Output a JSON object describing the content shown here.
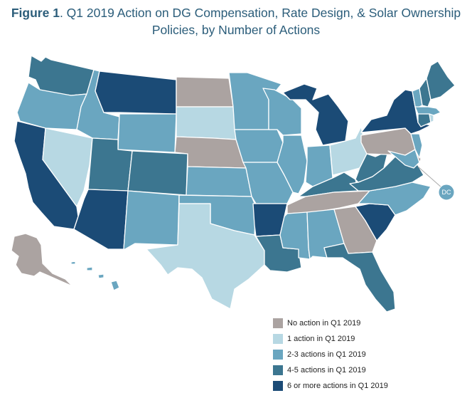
{
  "title": {
    "figure_label": "Figure 1",
    "text": ". Q1 2019 Action on DG Compensation, Rate Design, & Solar Ownership",
    "line2": "Policies, by Number of Actions"
  },
  "colors": {
    "none": "#aba3a1",
    "one": "#b7d8e3",
    "two_three": "#6aa6c0",
    "four_five": "#3c7690",
    "six_plus": "#1b4b76"
  },
  "legend": [
    {
      "label": "No action in Q1 2019",
      "category": "none"
    },
    {
      "label": "1 action in Q1 2019",
      "category": "one"
    },
    {
      "label": "2-3 actions in Q1 2019",
      "category": "two_three"
    },
    {
      "label": "4-5 actions in Q1 2019",
      "category": "four_five"
    },
    {
      "label": "6 or more actions in Q1 2019",
      "category": "six_plus"
    }
  ],
  "dc_label": "DC",
  "states": {
    "WA": "four_five",
    "OR": "two_three",
    "CA": "six_plus",
    "NV": "one",
    "ID": "two_three",
    "MT": "six_plus",
    "WY": "two_three",
    "UT": "four_five",
    "AZ": "six_plus",
    "CO": "four_five",
    "NM": "two_three",
    "ND": "none",
    "SD": "one",
    "NE": "none",
    "KS": "two_three",
    "OK": "two_three",
    "TX": "one",
    "MN": "two_three",
    "IA": "two_three",
    "MO": "two_three",
    "AR": "six_plus",
    "LA": "four_five",
    "WI": "two_three",
    "IL": "two_three",
    "MI": "six_plus",
    "IN": "two_three",
    "OH": "one",
    "KY": "four_five",
    "TN": "none",
    "MS": "two_three",
    "AL": "two_three",
    "GA": "none",
    "FL": "four_five",
    "SC": "six_plus",
    "NC": "two_three",
    "VA": "four_five",
    "WV": "four_five",
    "PA": "none",
    "NY": "six_plus",
    "ME": "four_five",
    "VT": "two_three",
    "NH": "four_five",
    "MA": "two_three",
    "CT": "four_five",
    "RI": "one",
    "NJ": "two_three",
    "DE": "none",
    "MD": "two_three",
    "AK": "none",
    "HI": "two_three",
    "DC": "two_three"
  }
}
